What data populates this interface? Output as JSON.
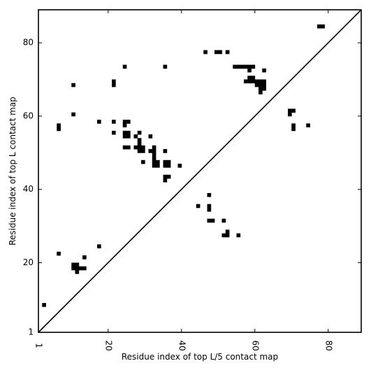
{
  "chart_data": {
    "type": "scatter",
    "title": "",
    "xlabel": "Residue index of top L/5 contact map",
    "ylabel": "Residue index of top L contact map",
    "xlim": [
      1,
      89
    ],
    "ylim": [
      1,
      89
    ],
    "xticks": [
      1,
      20,
      40,
      60,
      80
    ],
    "yticks": [
      1,
      20,
      40,
      60,
      80
    ],
    "xtick_labels": [
      "1",
      "20",
      "40",
      "60",
      "80"
    ],
    "ytick_labels": [
      "1",
      "20",
      "40",
      "60",
      "80"
    ],
    "grid": false,
    "diagonal": true,
    "marker": "square",
    "colors": {
      "marker": "#000000",
      "axes": "#000000",
      "background": "#ffffff"
    },
    "points": [
      [
        2.5,
        8.5
      ],
      [
        6.5,
        22.5
      ],
      [
        10.5,
        18.5
      ],
      [
        10.5,
        19.5
      ],
      [
        11.5,
        17.5
      ],
      [
        11.5,
        18.5
      ],
      [
        11.5,
        19.5
      ],
      [
        12.5,
        18.5
      ],
      [
        13.5,
        18.5
      ],
      [
        13.5,
        21.5
      ],
      [
        17.5,
        24.5
      ],
      [
        10.5,
        60.5
      ],
      [
        10.5,
        68.5
      ],
      [
        6.5,
        56.5
      ],
      [
        6.5,
        57.5
      ],
      [
        17.5,
        58.5
      ],
      [
        21.5,
        55.5
      ],
      [
        21.5,
        58.5
      ],
      [
        21.5,
        68.5
      ],
      [
        21.5,
        69.5
      ],
      [
        24.5,
        54.5
      ],
      [
        24.5,
        55.5
      ],
      [
        25.5,
        54.5
      ],
      [
        25.5,
        55.5
      ],
      [
        24.5,
        57.5
      ],
      [
        24.5,
        58.5
      ],
      [
        25.5,
        58.5
      ],
      [
        24.5,
        51.5
      ],
      [
        25.5,
        51.5
      ],
      [
        24.5,
        73.5
      ],
      [
        27.5,
        51.5
      ],
      [
        27.5,
        54.5
      ],
      [
        28.5,
        50.5
      ],
      [
        28.5,
        51.5
      ],
      [
        29.5,
        50.5
      ],
      [
        29.5,
        51.5
      ],
      [
        28.5,
        52.5
      ],
      [
        28.5,
        53.5
      ],
      [
        28.5,
        55.5
      ],
      [
        29.5,
        47.5
      ],
      [
        31.5,
        54.5
      ],
      [
        31.5,
        50.5
      ],
      [
        32.5,
        50.5
      ],
      [
        32.5,
        51.5
      ],
      [
        32.5,
        48.5
      ],
      [
        32.5,
        49.5
      ],
      [
        32.5,
        46.5
      ],
      [
        32.5,
        47.5
      ],
      [
        33.5,
        46.5
      ],
      [
        33.5,
        47.5
      ],
      [
        35.5,
        46.5
      ],
      [
        35.5,
        47.5
      ],
      [
        36.5,
        46.5
      ],
      [
        36.5,
        47.5
      ],
      [
        35.5,
        50.5
      ],
      [
        35.5,
        42.5
      ],
      [
        35.5,
        43.5
      ],
      [
        36.5,
        43.5
      ],
      [
        39.5,
        46.5
      ],
      [
        35.5,
        73.5
      ],
      [
        44.5,
        35.5
      ],
      [
        47.5,
        38.5
      ],
      [
        47.5,
        34.5
      ],
      [
        47.5,
        35.5
      ],
      [
        47.5,
        31.5
      ],
      [
        48.5,
        31.5
      ],
      [
        51.5,
        31.5
      ],
      [
        51.5,
        27.5
      ],
      [
        52.5,
        27.5
      ],
      [
        52.5,
        28.5
      ],
      [
        55.5,
        27.5
      ],
      [
        46.5,
        77.5
      ],
      [
        49.5,
        77.5
      ],
      [
        50.5,
        77.5
      ],
      [
        52.5,
        77.5
      ],
      [
        54.5,
        73.5
      ],
      [
        55.5,
        73.5
      ],
      [
        56.5,
        73.5
      ],
      [
        57.5,
        73.5
      ],
      [
        58.5,
        73.5
      ],
      [
        59.5,
        73.5
      ],
      [
        58.5,
        72.5
      ],
      [
        62.5,
        72.5
      ],
      [
        57.5,
        69.5
      ],
      [
        58.5,
        69.5
      ],
      [
        59.5,
        69.5
      ],
      [
        58.5,
        70.5
      ],
      [
        59.5,
        70.5
      ],
      [
        60.5,
        68.5
      ],
      [
        60.5,
        69.5
      ],
      [
        61.5,
        68.5
      ],
      [
        61.5,
        69.5
      ],
      [
        62.5,
        68.5
      ],
      [
        62.5,
        69.5
      ],
      [
        61.5,
        67.5
      ],
      [
        62.5,
        67.5
      ],
      [
        61.5,
        66.5
      ],
      [
        69.5,
        60.5
      ],
      [
        69.5,
        61.5
      ],
      [
        70.5,
        61.5
      ],
      [
        70.5,
        56.5
      ],
      [
        70.5,
        57.5
      ],
      [
        74.5,
        57.5
      ],
      [
        77.5,
        84.5
      ],
      [
        78.5,
        84.5
      ]
    ]
  }
}
